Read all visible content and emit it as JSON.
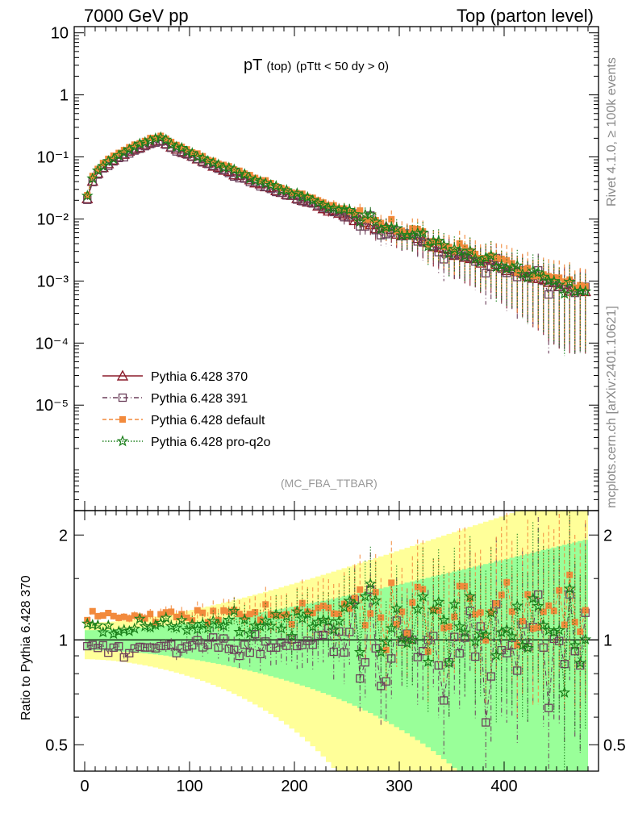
{
  "header": {
    "left": "7000 GeV pp",
    "right": "Top (parton level)"
  },
  "title": {
    "main": "pT",
    "sub": "(top)",
    "cut": "(pTtt < 50 dy > 0)"
  },
  "side_labels": {
    "rivet": "Rivet 4.1.0, ≥ 100k events",
    "mcplots": "mcplots.cern.ch [arXiv:2401.10621]"
  },
  "analysis_tag": "(MC_FBA_TTBAR)",
  "ratio_ylabel": "Ratio to Pythia 6.428 370",
  "colors": {
    "s370": "#8b1c2b",
    "s391": "#6b3f5a",
    "sdef": "#f28a3c",
    "sq2o": "#1a7f1a",
    "band_yellow": "#ffff99",
    "band_green": "#99ff99"
  },
  "chart_data": [
    {
      "type": "line",
      "panel": "main",
      "xlim": [
        -10,
        490
      ],
      "ylim_log10": [
        -6.7,
        1.1
      ],
      "y_ticks": [
        {
          "v": 10,
          "label": "10"
        },
        {
          "v": 1,
          "label": "1"
        },
        {
          "v": 0.1,
          "label": "10⁻¹"
        },
        {
          "v": 0.01,
          "label": "10⁻²"
        },
        {
          "v": 0.001,
          "label": "10⁻³"
        },
        {
          "v": 0.0001,
          "label": "10⁻⁴"
        },
        {
          "v": 1e-05,
          "label": "10⁻⁵"
        }
      ],
      "x_ticks": [
        0,
        100,
        200,
        300,
        400
      ],
      "shape": {
        "peak_x": 72,
        "peak_y": 0.19,
        "rise_x0": 2,
        "rise_y0": 0.012,
        "tail_y480": 0.0006
      },
      "series": [
        {
          "name": "Pythia 6.428 370",
          "marker": "triangle",
          "style": "solid",
          "color": "s370",
          "scale": 1.0,
          "noise": 0.05
        },
        {
          "name": "Pythia 6.428 391",
          "marker": "square-open",
          "style": "dashdot",
          "color": "s391",
          "scale": 0.95,
          "noise": 0.1
        },
        {
          "name": "Pythia 6.428 default",
          "marker": "square-filled",
          "style": "dashed",
          "color": "sdef",
          "scale": 1.18,
          "noise": 0.08
        },
        {
          "name": "Pythia 6.428 pro-q2o",
          "marker": "star",
          "style": "dotted",
          "color": "sq2o",
          "scale": 1.1,
          "noise": 0.08
        }
      ]
    },
    {
      "type": "line",
      "panel": "ratio",
      "xlim": [
        -10,
        490
      ],
      "ylim_log": [
        0.42,
        2.35
      ],
      "y_ticks": [
        {
          "v": 0.5,
          "label": "0.5"
        },
        {
          "v": 1,
          "label": "1"
        },
        {
          "v": 2,
          "label": "2"
        }
      ],
      "x_ticks": [
        {
          "v": 0,
          "label": "0"
        },
        {
          "v": 100,
          "label": "100"
        },
        {
          "v": 200,
          "label": "200"
        },
        {
          "v": 300,
          "label": "300"
        },
        {
          "v": 400,
          "label": "400"
        }
      ],
      "reference": 1.0,
      "series": [
        {
          "name": "Pythia 6.428 391",
          "mean": 0.96
        },
        {
          "name": "Pythia 6.428 default",
          "mean": 1.18
        },
        {
          "name": "Pythia 6.428 pro-q2o",
          "mean": 1.12
        }
      ]
    }
  ]
}
